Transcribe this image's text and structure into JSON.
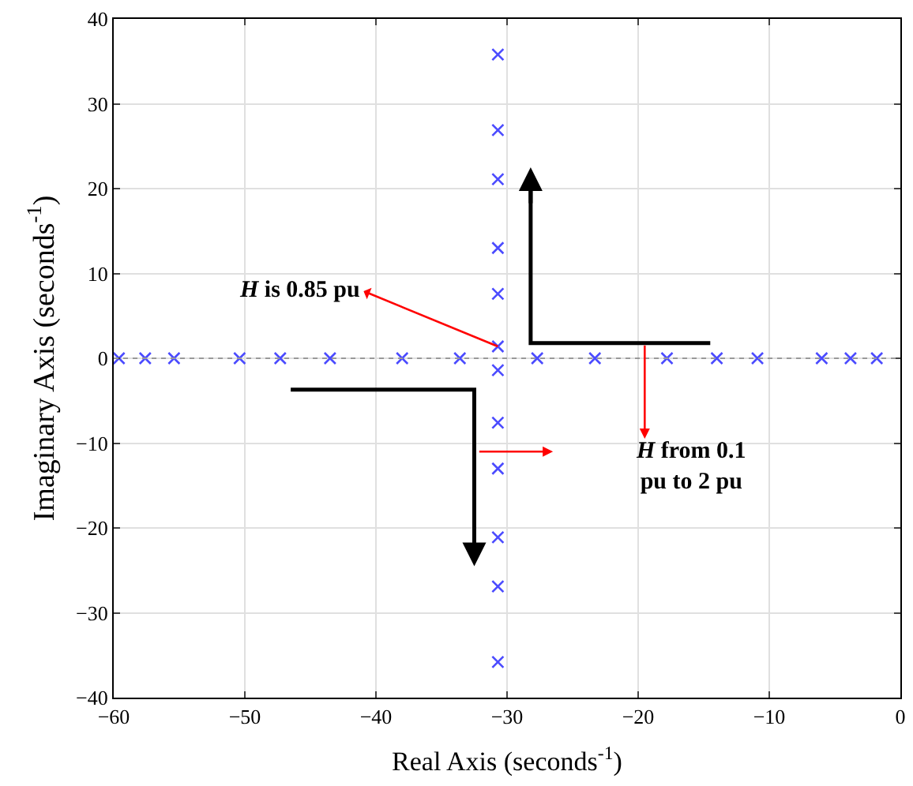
{
  "chart_data": {
    "type": "scatter",
    "xlabel": "Real Axis (seconds$^{-1}$)",
    "ylabel": "Imaginary Axis (seconds$^{-1}$)",
    "x": [
      -59.6,
      -57.6,
      -55.4,
      -50.4,
      -47.3,
      -43.5,
      -38.0,
      -33.6,
      -27.7,
      -23.3,
      -17.8,
      -14.0,
      -10.9,
      -6.0,
      -3.8,
      -1.8,
      -30.7,
      -30.7,
      -30.7,
      -30.7,
      -30.7,
      -30.7,
      -30.7,
      -30.7,
      -30.7,
      -30.7,
      -30.7,
      -30.7
    ],
    "values": [
      0,
      0,
      0,
      0,
      0,
      0,
      0,
      0,
      0,
      0,
      0,
      0,
      0,
      0,
      0,
      0,
      35.8,
      26.9,
      21.1,
      13.0,
      7.6,
      1.4,
      -1.4,
      -7.6,
      -13.0,
      -21.1,
      -26.9,
      -35.8
    ],
    "color": "#4b4bff",
    "marker": "cross",
    "xlim": [
      -60,
      0
    ],
    "xticks": [
      -60,
      -50,
      -40,
      -30,
      -20,
      -10,
      0
    ],
    "ylim": [
      -40,
      40
    ],
    "yticks": [
      -40,
      -30,
      -20,
      -10,
      0,
      10,
      20,
      30,
      40
    ],
    "grid": true,
    "ref_lines": [
      {
        "axis": "y",
        "value": 0,
        "color": "#999999",
        "line_style": "dotted"
      }
    ],
    "annotations": [
      {
        "text": "H is 0.85 pu",
        "x": -30.7,
        "y": 1.4
      },
      "H from 0.1\npu to 2 pu"
    ]
  }
}
